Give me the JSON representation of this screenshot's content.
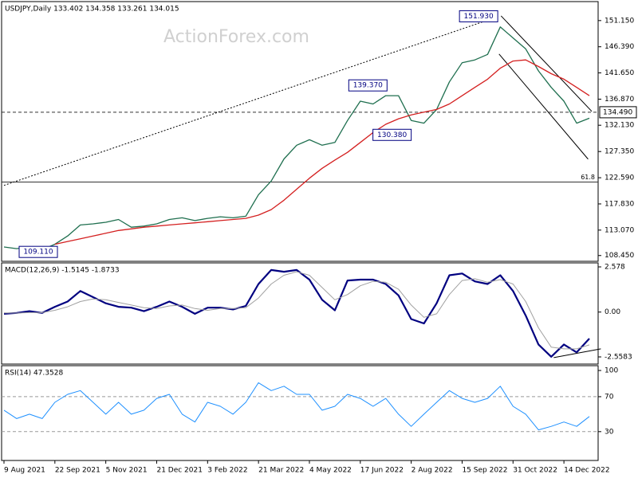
{
  "chart_data": [
    {
      "type": "line",
      "title": "USDJPY,Daily  133.402 134.358 133.261 134.015",
      "watermark": "ActionForex.com",
      "xlim": [
        -0.1875,
        46.6875
      ],
      "ylim": [
        107.4,
        154.6
      ],
      "yticks": [
        {
          "value": 151.15,
          "label": "151.150"
        },
        {
          "value": 146.39,
          "label": "146.390"
        },
        {
          "value": 141.65,
          "label": "141.650"
        },
        {
          "value": 136.87,
          "label": "136.870"
        },
        {
          "value": 132.13,
          "label": "132.130"
        },
        {
          "value": 127.35,
          "label": "127.350"
        },
        {
          "value": 122.59,
          "label": "122.590"
        },
        {
          "value": 117.83,
          "label": "117.830"
        },
        {
          "value": 113.07,
          "label": "113.070"
        },
        {
          "value": 108.45,
          "label": "108.450"
        }
      ],
      "series": [
        {
          "color": "#1f6f4f",
          "values": [
            110.0,
            109.7,
            110.0,
            109.5,
            110.5,
            112,
            114,
            114.2,
            114.5,
            115,
            113.6,
            113.8,
            114.2,
            115,
            115.3,
            114.8,
            115.2,
            115.5,
            115.3,
            115.6,
            119.5,
            122,
            126,
            128.5,
            129.5,
            128.5,
            129,
            133,
            136.5,
            136,
            137.5,
            137.5,
            133,
            132.5,
            135,
            140,
            143.5,
            144,
            145,
            150,
            148,
            146,
            142,
            139,
            136.5,
            132.5,
            133.4
          ]
        },
        {
          "color": "#d42020",
          "values": [
            null,
            null,
            null,
            null,
            110.5,
            111,
            111.5,
            112,
            112.5,
            113,
            113.3,
            113.6,
            113.8,
            114,
            114.2,
            114.4,
            114.6,
            114.8,
            115,
            115.2,
            115.8,
            116.8,
            118.5,
            120.5,
            122.5,
            124.3,
            125.8,
            127.2,
            129,
            130.8,
            132.3,
            133.3,
            134,
            134.5,
            135,
            136,
            137.5,
            139,
            140.5,
            142.5,
            143.8,
            144,
            142.8,
            141.5,
            140.5,
            139,
            137.5
          ]
        }
      ],
      "annotations": [
        {
          "x": 38.8,
          "value": 151.93,
          "label": "151.930"
        },
        {
          "x": 30.1,
          "value": 139.37,
          "label": "139.370"
        },
        {
          "x": 32.0,
          "value": 130.38,
          "label": "130.380"
        },
        {
          "x": 4.2,
          "value": 109.11,
          "label": "109.110"
        }
      ],
      "hlines": [
        {
          "value": 134.49,
          "label": "134.490",
          "style": "dashed"
        },
        {
          "value": 121.8,
          "label": "61.8",
          "style": "solid"
        }
      ],
      "trendlines": [
        {
          "x": [
            0,
            38.9
          ],
          "y": [
            121.2,
            151.93
          ],
          "style": "dotted"
        },
        {
          "x": [
            39.06,
            46.19
          ],
          "y": [
            152.0,
            134.65
          ],
          "style": "solid"
        },
        {
          "x": [
            38.9,
            45.9
          ],
          "y": [
            145.07,
            125.97
          ],
          "style": "solid"
        }
      ]
    },
    {
      "type": "line",
      "title": "MACD(12,26,9) -1.5145 -1.8733",
      "xlim": [
        -0.1875,
        46.6875
      ],
      "ylim": [
        -2.967,
        2.805
      ],
      "yticks": [
        2.578,
        {
          "value": 0,
          "label": "0.00"
        },
        -2.5583
      ],
      "series": [
        {
          "color": "#000080",
          "width": 2.2,
          "values": [
            -0.1,
            -0.05,
            0.05,
            -0.05,
            0.3,
            0.6,
            1.2,
            0.85,
            0.5,
            0.3,
            0.25,
            0.05,
            0.3,
            0.6,
            0.3,
            -0.1,
            0.25,
            0.25,
            0.15,
            0.35,
            1.6,
            2.4,
            2.3,
            2.4,
            1.85,
            0.7,
            0.1,
            1.8,
            1.85,
            1.85,
            1.6,
            0.95,
            -0.4,
            -0.65,
            0.5,
            2.1,
            2.2,
            1.75,
            1.6,
            2.1,
            1.2,
            -0.2,
            -1.85,
            -2.55,
            -1.85,
            -2.3,
            -1.5145
          ]
        },
        {
          "color": "#a0a0a0",
          "width": 1,
          "values": [
            -0.05,
            -0.06,
            -0.03,
            -0.03,
            0.1,
            0.3,
            0.6,
            0.75,
            0.7,
            0.55,
            0.4,
            0.25,
            0.2,
            0.35,
            0.4,
            0.2,
            0.1,
            0.2,
            0.2,
            0.25,
            0.8,
            1.6,
            2.1,
            2.3,
            2.1,
            1.4,
            0.7,
            1.0,
            1.5,
            1.75,
            1.7,
            1.3,
            0.4,
            -0.3,
            -0.1,
            1.0,
            1.8,
            1.9,
            1.7,
            1.85,
            1.6,
            0.6,
            -0.9,
            -2.0,
            -2.1,
            -2.1,
            -1.8733
          ]
        }
      ],
      "trendlines": [
        {
          "x": [
            43.2,
            46.9
          ],
          "y": [
            -2.6,
            -2.1
          ],
          "style": "solid"
        }
      ]
    },
    {
      "type": "line",
      "title": "RSI(14) 47.3528",
      "xlim": [
        -0.1875,
        46.6875
      ],
      "ylim": [
        -3,
        105.5
      ],
      "yticks": [
        100,
        70,
        30
      ],
      "levels": [
        70,
        30
      ],
      "series": [
        {
          "color": "#1e90ff",
          "width": 1,
          "values": [
            54.5,
            45,
            50,
            45,
            63.6,
            72.7,
            77,
            63.6,
            50,
            63.6,
            50,
            54.5,
            68,
            72.7,
            50,
            41,
            63.6,
            59,
            50,
            63.6,
            86,
            77,
            82,
            72.7,
            72.7,
            54.5,
            59,
            72.7,
            68,
            59,
            68,
            50,
            36,
            50,
            63.6,
            77,
            68,
            63.6,
            68,
            82,
            59,
            50,
            32,
            36,
            41,
            36,
            47.3528
          ]
        }
      ],
      "xticks": [
        {
          "value": 0,
          "label": "9 Aug 2021"
        },
        {
          "value": 4,
          "label": "22 Sep 2021"
        },
        {
          "value": 8,
          "label": "5 Nov 2021"
        },
        {
          "value": 12,
          "label": "21 Dec 2021"
        },
        {
          "value": 16,
          "label": "3 Feb 2022"
        },
        {
          "value": 20,
          "label": "21 Mar 2022"
        },
        {
          "value": 24,
          "label": "4 May 2022"
        },
        {
          "value": 28,
          "label": "17 Jun 2022"
        },
        {
          "value": 32,
          "label": "2 Aug 2022"
        },
        {
          "value": 36,
          "label": "15 Sep 2022"
        },
        {
          "value": 40,
          "label": "31 Oct 2022"
        },
        {
          "value": 44,
          "label": "14 Dec 2022"
        }
      ]
    }
  ]
}
